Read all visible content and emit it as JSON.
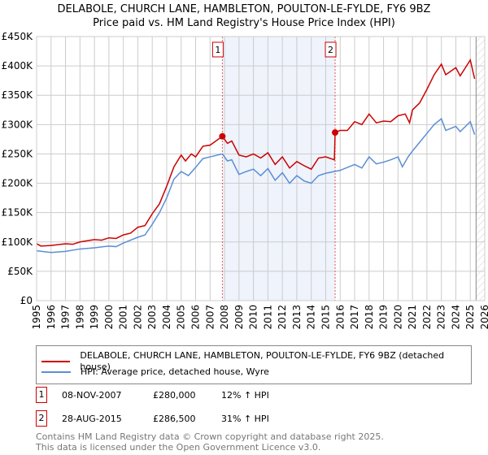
{
  "chart_data": {
    "type": "line",
    "title": "DELABOLE, CHURCH LANE, HAMBLETON, POULTON-LE-FYLDE, FY6 9BZ",
    "subtitle": "Price paid vs. HM Land Registry's House Price Index (HPI)",
    "xlim": [
      1995,
      2026
    ],
    "ylim": [
      0,
      450000
    ],
    "x_ticks": [
      "1995",
      "1996",
      "1997",
      "1998",
      "1999",
      "2000",
      "2001",
      "2002",
      "2003",
      "2004",
      "2005",
      "2006",
      "2007",
      "2008",
      "2009",
      "2010",
      "2011",
      "2012",
      "2013",
      "2014",
      "2015",
      "2016",
      "2017",
      "2018",
      "2019",
      "2020",
      "2021",
      "2022",
      "2023",
      "2024",
      "2025",
      "2026"
    ],
    "y_ticks": [
      {
        "v": 0,
        "label": "£0"
      },
      {
        "v": 50000,
        "label": "£50K"
      },
      {
        "v": 100000,
        "label": "£100K"
      },
      {
        "v": 150000,
        "label": "£150K"
      },
      {
        "v": 200000,
        "label": "£200K"
      },
      {
        "v": 250000,
        "label": "£250K"
      },
      {
        "v": 300000,
        "label": "£300K"
      },
      {
        "v": 350000,
        "label": "£350K"
      },
      {
        "v": 400000,
        "label": "£400K"
      },
      {
        "v": 450000,
        "label": "£450K"
      }
    ],
    "grid": true,
    "shaded_range": [
      2007.85,
      2015.65
    ],
    "forecast_hatch_from": 2025.4,
    "series": [
      {
        "name": "DELABOLE, CHURCH LANE, HAMBLETON, POULTON-LE-FYLDE, FY6 9BZ (detached house)",
        "color": "#cc0000",
        "points": [
          [
            1995,
            97
          ],
          [
            1995.3,
            93
          ],
          [
            1996,
            94
          ],
          [
            1997,
            97
          ],
          [
            1997.5,
            96
          ],
          [
            1998,
            100
          ],
          [
            1999,
            104
          ],
          [
            1999.5,
            103
          ],
          [
            2000,
            107
          ],
          [
            2000.5,
            106
          ],
          [
            2001,
            112
          ],
          [
            2001.5,
            115
          ],
          [
            2002,
            125
          ],
          [
            2002.5,
            128
          ],
          [
            2003,
            148
          ],
          [
            2003.5,
            165
          ],
          [
            2004,
            195
          ],
          [
            2004.5,
            228
          ],
          [
            2005,
            248
          ],
          [
            2005.3,
            238
          ],
          [
            2005.7,
            250
          ],
          [
            2006,
            245
          ],
          [
            2006.5,
            263
          ],
          [
            2007,
            265
          ],
          [
            2007.85,
            280
          ],
          [
            2008.2,
            268
          ],
          [
            2008.5,
            272
          ],
          [
            2009,
            248
          ],
          [
            2009.5,
            245
          ],
          [
            2010,
            250
          ],
          [
            2010.5,
            243
          ],
          [
            2011,
            252
          ],
          [
            2011.5,
            232
          ],
          [
            2012,
            245
          ],
          [
            2012.5,
            226
          ],
          [
            2013,
            237
          ],
          [
            2013.5,
            230
          ],
          [
            2014,
            224
          ],
          [
            2014.5,
            243
          ],
          [
            2015,
            245
          ],
          [
            2015.6,
            240
          ],
          [
            2015.65,
            286.5
          ],
          [
            2016,
            290
          ],
          [
            2016.5,
            290
          ],
          [
            2017,
            305
          ],
          [
            2017.5,
            300
          ],
          [
            2018,
            318
          ],
          [
            2018.5,
            303
          ],
          [
            2019,
            306
          ],
          [
            2019.5,
            305
          ],
          [
            2020,
            315
          ],
          [
            2020.5,
            318
          ],
          [
            2020.8,
            303
          ],
          [
            2021,
            325
          ],
          [
            2021.5,
            337
          ],
          [
            2022,
            360
          ],
          [
            2022.5,
            385
          ],
          [
            2023,
            403
          ],
          [
            2023.3,
            385
          ],
          [
            2024,
            397
          ],
          [
            2024.3,
            383
          ],
          [
            2025,
            410
          ],
          [
            2025.3,
            378
          ]
        ]
      },
      {
        "name": "HPI: Average price, detached house, Wyre",
        "color": "#5b8ed6",
        "points": [
          [
            1995,
            85
          ],
          [
            1996,
            82
          ],
          [
            1997,
            84
          ],
          [
            1998,
            88
          ],
          [
            1999,
            90
          ],
          [
            2000,
            93
          ],
          [
            2000.5,
            92
          ],
          [
            2001,
            98
          ],
          [
            2002,
            108
          ],
          [
            2002.5,
            112
          ],
          [
            2003,
            130
          ],
          [
            2003.5,
            150
          ],
          [
            2004,
            175
          ],
          [
            2004.5,
            207
          ],
          [
            2005,
            220
          ],
          [
            2005.5,
            213
          ],
          [
            2006,
            227
          ],
          [
            2006.5,
            242
          ],
          [
            2007,
            245
          ],
          [
            2007.85,
            250
          ],
          [
            2008.2,
            238
          ],
          [
            2008.5,
            240
          ],
          [
            2009,
            215
          ],
          [
            2009.5,
            220
          ],
          [
            2010,
            224
          ],
          [
            2010.5,
            213
          ],
          [
            2011,
            225
          ],
          [
            2011.5,
            205
          ],
          [
            2012,
            218
          ],
          [
            2012.5,
            200
          ],
          [
            2013,
            213
          ],
          [
            2013.5,
            204
          ],
          [
            2014,
            200
          ],
          [
            2014.5,
            213
          ],
          [
            2015,
            217
          ],
          [
            2016,
            222
          ],
          [
            2017,
            232
          ],
          [
            2017.5,
            226
          ],
          [
            2018,
            245
          ],
          [
            2018.5,
            233
          ],
          [
            2019,
            236
          ],
          [
            2019.5,
            240
          ],
          [
            2020,
            245
          ],
          [
            2020.3,
            228
          ],
          [
            2020.7,
            245
          ],
          [
            2021,
            255
          ],
          [
            2021.5,
            270
          ],
          [
            2022,
            285
          ],
          [
            2022.5,
            300
          ],
          [
            2023,
            310
          ],
          [
            2023.3,
            290
          ],
          [
            2024,
            297
          ],
          [
            2024.3,
            288
          ],
          [
            2025,
            305
          ],
          [
            2025.3,
            283
          ]
        ]
      }
    ],
    "annotations": [
      {
        "label": "1",
        "x": 2007.85,
        "y": 280000
      },
      {
        "label": "2",
        "x": 2015.65,
        "y": 286500
      }
    ]
  },
  "legend": {
    "items": [
      "DELABOLE, CHURCH LANE, HAMBLETON, POULTON-LE-FYLDE, FY6 9BZ (detached house)",
      "HPI: Average price, detached house, Wyre"
    ]
  },
  "transactions": [
    {
      "num": "1",
      "date": "08-NOV-2007",
      "price": "£280,000",
      "hpi": "12% ↑ HPI"
    },
    {
      "num": "2",
      "date": "28-AUG-2015",
      "price": "£286,500",
      "hpi": "31% ↑ HPI"
    }
  ],
  "footer": {
    "line1": "Contains HM Land Registry data © Crown copyright and database right 2025.",
    "line2": "This data is licensed under the Open Government Licence v3.0."
  }
}
